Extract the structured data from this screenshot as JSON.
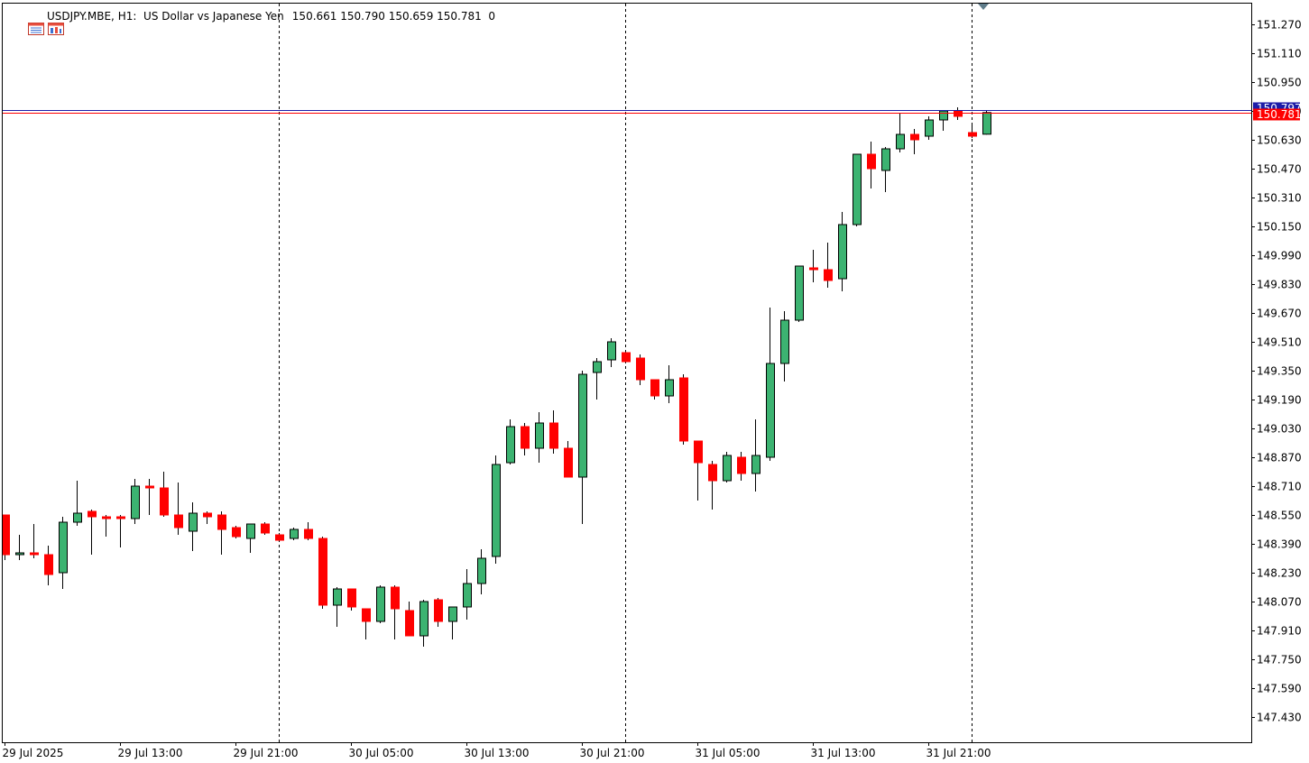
{
  "window": {
    "symbol": "USDJPY.MBE",
    "timeframe": "H1:",
    "description": "US Dollar vs Japanese Yen",
    "ohlc_values": [
      "150.661",
      "150.790",
      "150.659",
      "150.781"
    ],
    "volume": "0",
    "icons": [
      "terminal-window-icon",
      "chart-window-icon"
    ]
  },
  "price_tags": {
    "ask": {
      "value": "150.797",
      "color": "#1c1ca8"
    },
    "bid": {
      "value": "150.781",
      "color": "#ff0000"
    }
  },
  "colors": {
    "bull_body": "#3cb371",
    "bear_body": "#ff0000",
    "outline": "#000000",
    "grid": "#000000",
    "background": "#ffffff",
    "period_marker": "#607d8b"
  },
  "chart_data": {
    "type": "candlestick",
    "symbol": "USDJPY.MBE",
    "timeframe": "H1",
    "y_tick_labels": [
      "151.270",
      "151.110",
      "150.950",
      "150.790",
      "150.630",
      "150.470",
      "150.310",
      "150.150",
      "149.990",
      "149.830",
      "149.670",
      "149.510",
      "149.350",
      "149.190",
      "149.030",
      "148.870",
      "148.710",
      "148.550",
      "148.390",
      "148.230",
      "148.070",
      "147.910",
      "147.750",
      "147.590",
      "147.430"
    ],
    "ylim": [
      147.28,
      151.37
    ],
    "x_tick_labels": [
      "29 Jul 2025",
      "29 Jul 13:00",
      "29 Jul 21:00",
      "30 Jul 05:00",
      "30 Jul 13:00",
      "30 Jul 21:00",
      "31 Jul 05:00",
      "31 Jul 13:00",
      "31 Jul 21:00"
    ],
    "x_tick_bar_index": [
      0,
      8,
      16,
      24,
      32,
      40,
      48,
      56,
      64
    ],
    "period_separator_bar_index": [
      19,
      43,
      67
    ],
    "candles": [
      {
        "o": 148.55,
        "h": 148.55,
        "l": 148.3,
        "c": 148.33
      },
      {
        "o": 148.33,
        "h": 148.44,
        "l": 148.3,
        "c": 148.34
      },
      {
        "o": 148.34,
        "h": 148.5,
        "l": 148.31,
        "c": 148.33
      },
      {
        "o": 148.33,
        "h": 148.38,
        "l": 148.16,
        "c": 148.22
      },
      {
        "o": 148.23,
        "h": 148.54,
        "l": 148.14,
        "c": 148.51
      },
      {
        "o": 148.51,
        "h": 148.74,
        "l": 148.49,
        "c": 148.56
      },
      {
        "o": 148.57,
        "h": 148.58,
        "l": 148.33,
        "c": 148.54
      },
      {
        "o": 148.54,
        "h": 148.55,
        "l": 148.43,
        "c": 148.53
      },
      {
        "o": 148.54,
        "h": 148.55,
        "l": 148.37,
        "c": 148.53
      },
      {
        "o": 148.53,
        "h": 148.75,
        "l": 148.5,
        "c": 148.71
      },
      {
        "o": 148.71,
        "h": 148.75,
        "l": 148.55,
        "c": 148.7
      },
      {
        "o": 148.7,
        "h": 148.79,
        "l": 148.54,
        "c": 148.55
      },
      {
        "o": 148.55,
        "h": 148.73,
        "l": 148.44,
        "c": 148.48
      },
      {
        "o": 148.46,
        "h": 148.62,
        "l": 148.35,
        "c": 148.56
      },
      {
        "o": 148.56,
        "h": 148.57,
        "l": 148.5,
        "c": 148.54
      },
      {
        "o": 148.55,
        "h": 148.57,
        "l": 148.33,
        "c": 148.47
      },
      {
        "o": 148.48,
        "h": 148.49,
        "l": 148.42,
        "c": 148.43
      },
      {
        "o": 148.42,
        "h": 148.5,
        "l": 148.34,
        "c": 148.5
      },
      {
        "o": 148.5,
        "h": 148.51,
        "l": 148.44,
        "c": 148.45
      },
      {
        "o": 148.44,
        "h": 148.45,
        "l": 148.4,
        "c": 148.41
      },
      {
        "o": 148.42,
        "h": 148.48,
        "l": 148.41,
        "c": 148.47
      },
      {
        "o": 148.47,
        "h": 148.51,
        "l": 148.41,
        "c": 148.42
      },
      {
        "o": 148.42,
        "h": 148.43,
        "l": 148.03,
        "c": 148.05
      },
      {
        "o": 148.05,
        "h": 148.15,
        "l": 147.93,
        "c": 148.14
      },
      {
        "o": 148.14,
        "h": 148.14,
        "l": 148.02,
        "c": 148.04
      },
      {
        "o": 148.03,
        "h": 148.03,
        "l": 147.86,
        "c": 147.96
      },
      {
        "o": 147.96,
        "h": 148.16,
        "l": 147.95,
        "c": 148.15
      },
      {
        "o": 148.15,
        "h": 148.16,
        "l": 147.86,
        "c": 148.03
      },
      {
        "o": 148.02,
        "h": 148.07,
        "l": 147.88,
        "c": 147.88
      },
      {
        "o": 147.88,
        "h": 148.08,
        "l": 147.82,
        "c": 148.07
      },
      {
        "o": 148.08,
        "h": 148.09,
        "l": 147.93,
        "c": 147.96
      },
      {
        "o": 147.96,
        "h": 148.04,
        "l": 147.86,
        "c": 148.04
      },
      {
        "o": 148.04,
        "h": 148.25,
        "l": 147.97,
        "c": 148.17
      },
      {
        "o": 148.17,
        "h": 148.36,
        "l": 148.11,
        "c": 148.31
      },
      {
        "o": 148.32,
        "h": 148.88,
        "l": 148.28,
        "c": 148.83
      },
      {
        "o": 148.84,
        "h": 149.08,
        "l": 148.83,
        "c": 149.04
      },
      {
        "o": 149.04,
        "h": 149.06,
        "l": 148.88,
        "c": 148.92
      },
      {
        "o": 148.92,
        "h": 149.12,
        "l": 148.84,
        "c": 149.06
      },
      {
        "o": 149.06,
        "h": 149.13,
        "l": 148.89,
        "c": 148.92
      },
      {
        "o": 148.92,
        "h": 148.96,
        "l": 148.76,
        "c": 148.76
      },
      {
        "o": 148.76,
        "h": 149.35,
        "l": 148.5,
        "c": 149.33
      },
      {
        "o": 149.34,
        "h": 149.42,
        "l": 149.19,
        "c": 149.4
      },
      {
        "o": 149.41,
        "h": 149.53,
        "l": 149.37,
        "c": 149.51
      },
      {
        "o": 149.45,
        "h": 149.45,
        "l": 149.4,
        "c": 149.4
      },
      {
        "o": 149.42,
        "h": 149.44,
        "l": 149.27,
        "c": 149.3
      },
      {
        "o": 149.3,
        "h": 149.3,
        "l": 149.19,
        "c": 149.21
      },
      {
        "o": 149.21,
        "h": 149.38,
        "l": 149.17,
        "c": 149.3
      },
      {
        "o": 149.31,
        "h": 149.33,
        "l": 148.94,
        "c": 148.96
      },
      {
        "o": 148.96,
        "h": 148.96,
        "l": 148.63,
        "c": 148.84
      },
      {
        "o": 148.83,
        "h": 148.85,
        "l": 148.58,
        "c": 148.74
      },
      {
        "o": 148.74,
        "h": 148.9,
        "l": 148.73,
        "c": 148.88
      },
      {
        "o": 148.87,
        "h": 148.9,
        "l": 148.74,
        "c": 148.78
      },
      {
        "o": 148.78,
        "h": 149.08,
        "l": 148.68,
        "c": 148.88
      },
      {
        "o": 148.87,
        "h": 149.7,
        "l": 148.85,
        "c": 149.39
      },
      {
        "o": 149.39,
        "h": 149.68,
        "l": 149.29,
        "c": 149.63
      },
      {
        "o": 149.63,
        "h": 149.93,
        "l": 149.62,
        "c": 149.93
      },
      {
        "o": 149.92,
        "h": 150.02,
        "l": 149.84,
        "c": 149.91
      },
      {
        "o": 149.91,
        "h": 150.06,
        "l": 149.81,
        "c": 149.85
      },
      {
        "o": 149.86,
        "h": 150.23,
        "l": 149.79,
        "c": 150.16
      },
      {
        "o": 150.16,
        "h": 150.55,
        "l": 150.15,
        "c": 150.55
      },
      {
        "o": 150.55,
        "h": 150.62,
        "l": 150.36,
        "c": 150.47
      },
      {
        "o": 150.46,
        "h": 150.59,
        "l": 150.34,
        "c": 150.58
      },
      {
        "o": 150.58,
        "h": 150.78,
        "l": 150.56,
        "c": 150.66
      },
      {
        "o": 150.66,
        "h": 150.69,
        "l": 150.55,
        "c": 150.63
      },
      {
        "o": 150.65,
        "h": 150.76,
        "l": 150.63,
        "c": 150.74
      },
      {
        "o": 150.74,
        "h": 150.79,
        "l": 150.68,
        "c": 150.79
      },
      {
        "o": 150.79,
        "h": 150.81,
        "l": 150.74,
        "c": 150.76
      },
      {
        "o": 150.67,
        "h": 150.71,
        "l": 150.64,
        "c": 150.65
      },
      {
        "o": 150.661,
        "h": 150.79,
        "l": 150.659,
        "c": 150.781
      }
    ]
  }
}
